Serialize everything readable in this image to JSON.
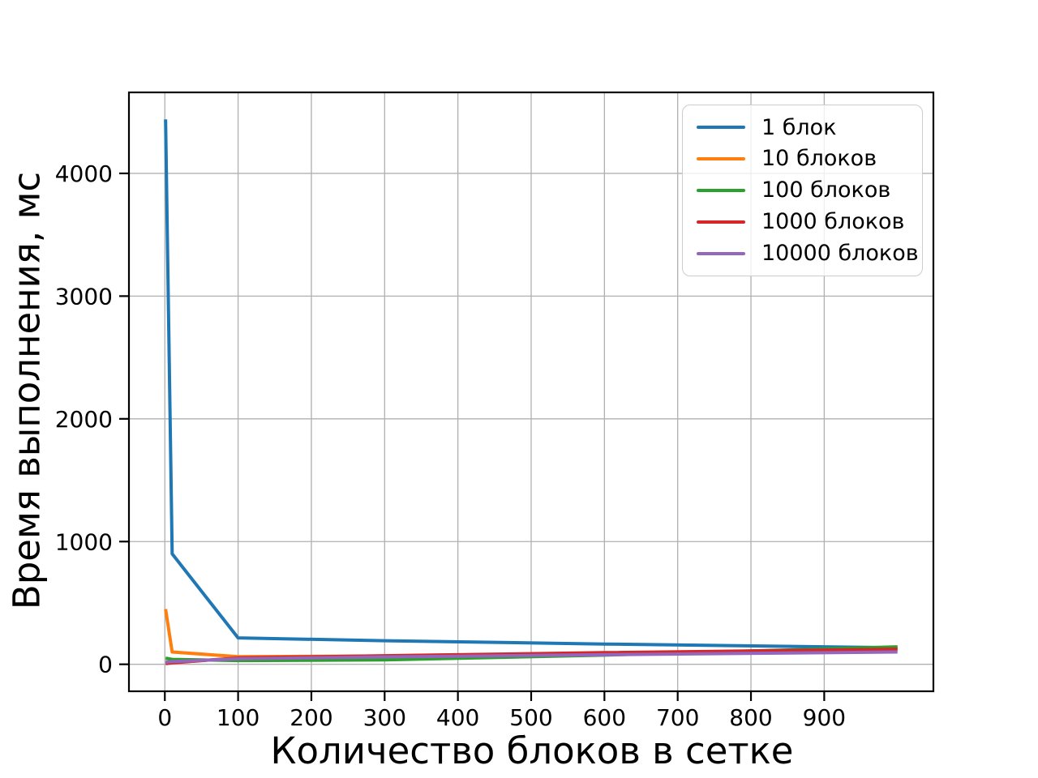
{
  "chart_data": {
    "type": "line",
    "title": "",
    "xlabel": "Количество блоков в сетке",
    "ylabel": "Время выполнения, мс",
    "x": [
      1,
      10,
      100,
      300,
      600,
      1000
    ],
    "series": [
      {
        "name": "1 блок",
        "color": "#1f77b4",
        "values": [
          4440,
          900,
          215,
          192,
          165,
          135
        ]
      },
      {
        "name": "10 блоков",
        "color": "#ff7f0e",
        "values": [
          450,
          100,
          62,
          68,
          92,
          118
        ]
      },
      {
        "name": "100 блоков",
        "color": "#2ca02c",
        "values": [
          50,
          40,
          30,
          36,
          75,
          142
        ]
      },
      {
        "name": "1000 блоков",
        "color": "#d62728",
        "values": [
          5,
          12,
          52,
          70,
          95,
          123
        ]
      },
      {
        "name": "10000 блоков",
        "color": "#9467bd",
        "values": [
          18,
          22,
          45,
          60,
          78,
          100
        ]
      }
    ],
    "xticks": [
      0,
      100,
      200,
      300,
      400,
      500,
      600,
      700,
      800,
      900
    ],
    "yticks": [
      0,
      1000,
      2000,
      3000,
      4000
    ],
    "xlim": [
      -49,
      1049
    ],
    "ylim": [
      -220,
      4660
    ],
    "grid": true,
    "grid_color": "#b0b0b0",
    "axis_color": "#000000",
    "legend_position": "upper right"
  }
}
